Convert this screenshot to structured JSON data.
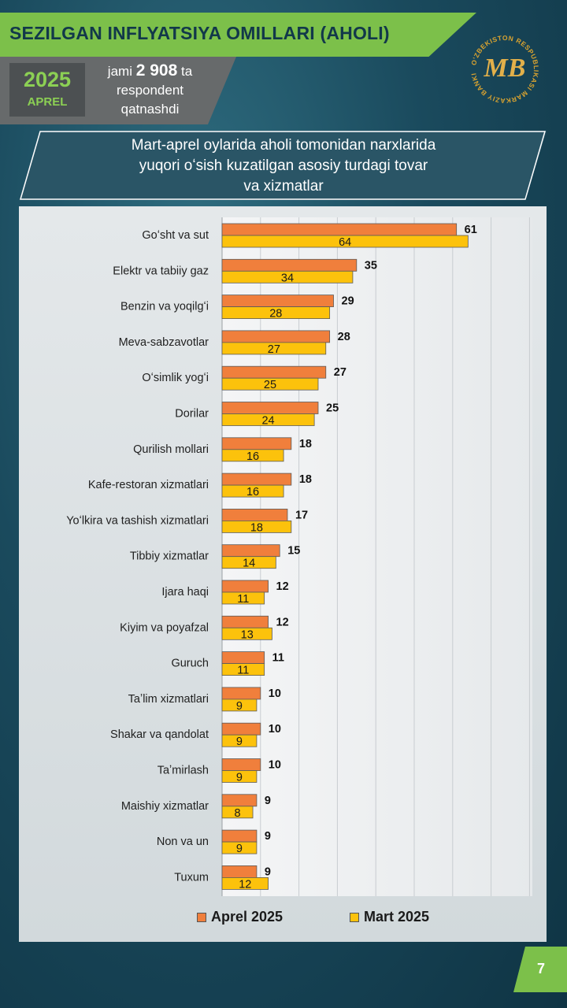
{
  "header": {
    "title": "SEZILGAN INFLYATSIYA OMILLARI (AHOLI)",
    "year": "2025",
    "month": "APREL",
    "respondents_pre": "jami",
    "respondents_count": "2 908",
    "respondents_post": "ta",
    "respondents_line2": "respondent",
    "respondents_line3": "qatnashdi"
  },
  "logo": {
    "text": "O'ZBEKISTON RESPUBLIKASI MARKAZIY BANKI",
    "monogram": "MB"
  },
  "subtitle": {
    "line1": "Mart-aprel oylarida aholi tomonidan narxlarida",
    "line2": "yuqori oʻsish kuzatilgan asosiy turdagi tovar",
    "line3": "va xizmatlar"
  },
  "colors": {
    "april": "#f07f3c",
    "march": "#fcc20c",
    "accent_green": "#7cc04a"
  },
  "chart_data": {
    "type": "bar",
    "orientation": "horizontal",
    "categories": [
      "Goʻsht va sut",
      "Elektr va tabiiy gaz",
      "Benzin va yoqilgʻi",
      "Meva-sabzavotlar",
      "Oʻsimlik yogʻi",
      "Dorilar",
      "Qurilish mollari",
      "Kafe-restoran xizmatlari",
      "Yoʻlkira va tashish xizmatlari",
      "Tibbiy xizmatlar",
      "Ijara haqi",
      "Kiyim va poyafzal",
      "Guruch",
      "Taʼlim xizmatlari",
      "Shakar va qandolat",
      "Taʼmirlash",
      "Maishiy xizmatlar",
      "Non va un",
      "Tuxum"
    ],
    "series": [
      {
        "name": "Aprel 2025",
        "values": [
          61,
          35,
          29,
          28,
          27,
          25,
          18,
          18,
          17,
          15,
          12,
          12,
          11,
          10,
          10,
          10,
          9,
          9,
          9
        ]
      },
      {
        "name": "Mart 2025",
        "values": [
          64,
          34,
          28,
          27,
          25,
          24,
          16,
          16,
          18,
          14,
          11,
          13,
          11,
          9,
          9,
          9,
          8,
          9,
          12
        ]
      }
    ],
    "xlim": [
      0,
      80
    ],
    "grid": true,
    "legend_position": "bottom"
  },
  "page": {
    "number": "7"
  }
}
